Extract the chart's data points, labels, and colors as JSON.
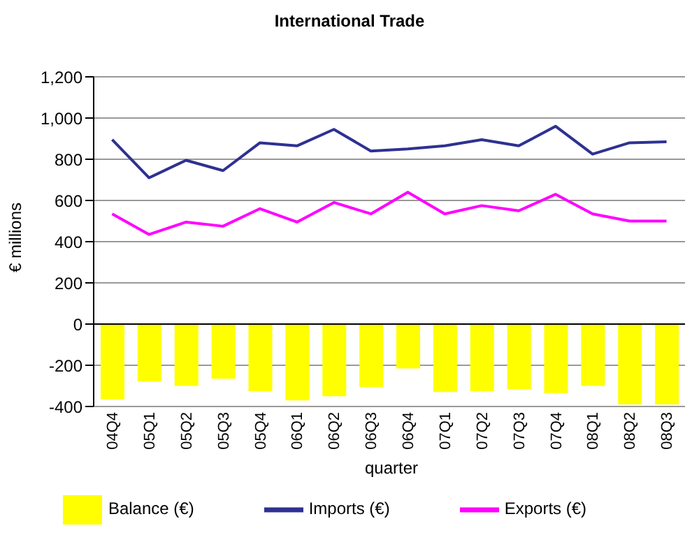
{
  "chart_data": {
    "type": "bar",
    "title": "International Trade",
    "xlabel": "quarter",
    "ylabel": "€ millions",
    "categories": [
      "04Q4",
      "05Q1",
      "05Q2",
      "05Q3",
      "05Q4",
      "06Q1",
      "06Q2",
      "06Q3",
      "06Q4",
      "07Q1",
      "07Q2",
      "07Q3",
      "07Q4",
      "08Q1",
      "08Q2",
      "08Q3"
    ],
    "series": [
      {
        "name": "Balance (€)",
        "color": "#ffff00",
        "values": [
          -365,
          -280,
          -300,
          -265,
          -325,
          -370,
          -350,
          -305,
          -215,
          -330,
          -325,
          -315,
          -335,
          -300,
          -390,
          -390
        ]
      },
      {
        "name": "Imports (€)",
        "type": "line",
        "color": "#2e3192",
        "values": [
          895,
          710,
          795,
          745,
          880,
          865,
          945,
          840,
          850,
          865,
          895,
          865,
          960,
          825,
          880,
          885
        ]
      },
      {
        "name": "Exports (€)",
        "type": "line",
        "color": "#ff00ff",
        "values": [
          535,
          435,
          495,
          475,
          560,
          495,
          590,
          535,
          640,
          535,
          575,
          550,
          630,
          535,
          500,
          500
        ]
      }
    ],
    "ylim": [
      -400,
      1200
    ],
    "yticks": [
      -400,
      -200,
      0,
      200,
      400,
      600,
      800,
      {
        "value": 1000,
        "label": "1,000"
      },
      {
        "value": 1200,
        "label": "1,200"
      }
    ],
    "grid": "y",
    "legend": "bottom",
    "marker": "none",
    "line_style": "solid"
  }
}
